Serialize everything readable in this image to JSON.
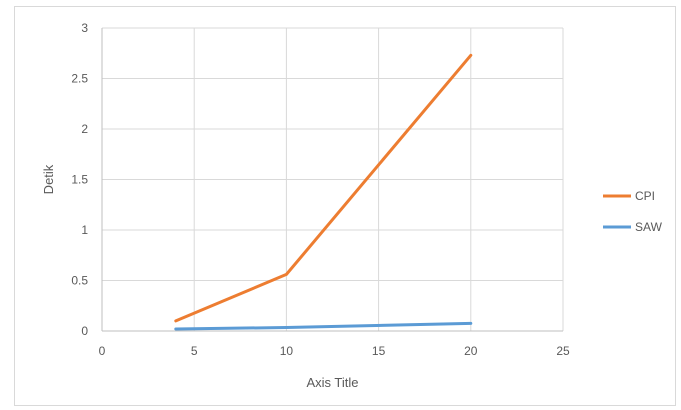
{
  "chart_data": {
    "type": "line",
    "title": "",
    "xlabel": "Axis Title",
    "ylabel": "Detik",
    "xlim": [
      0,
      25
    ],
    "ylim": [
      0,
      3
    ],
    "x_ticks": [
      0,
      5,
      10,
      15,
      20,
      25
    ],
    "y_ticks": [
      0,
      0.5,
      1,
      1.5,
      2,
      2.5,
      3
    ],
    "x_tick_labels": [
      "0",
      "5",
      "10",
      "15",
      "20",
      "25"
    ],
    "y_tick_labels": [
      "0",
      "0.5",
      "1",
      "1.5",
      "2",
      "2.5",
      "3"
    ],
    "grid": true,
    "legend_position": "right",
    "series": [
      {
        "name": "CPI",
        "color": "#ED7D31",
        "x": [
          4,
          10,
          20
        ],
        "y": [
          0.1,
          0.56,
          2.73
        ]
      },
      {
        "name": "SAW",
        "color": "#5B9BD5",
        "x": [
          4,
          10,
          20
        ],
        "y": [
          0.02,
          0.035,
          0.075
        ]
      }
    ]
  }
}
